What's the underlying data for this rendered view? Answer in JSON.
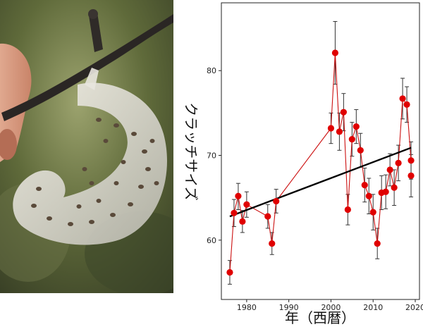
{
  "photo": {
    "subject": "egg-mass"
  },
  "chart_data": {
    "type": "line",
    "xlabel": "年（西暦）",
    "ylabel": "クラッチサイズ",
    "xlim": [
      1974,
      2021
    ],
    "ylim": [
      53,
      88
    ],
    "x_ticks": [
      1980,
      1990,
      2000,
      2010,
      2020
    ],
    "y_ticks": [
      60,
      70,
      80
    ],
    "grid": false,
    "legend": "none",
    "colors": {
      "series": "#cc1111",
      "marker": "#e00000",
      "trend": "#000000",
      "errorbar": "#333333"
    },
    "series": [
      {
        "x": [
          1976,
          1977,
          1978,
          1979,
          1980,
          1985,
          1986,
          1987,
          2000,
          2001,
          2002,
          2003,
          2004,
          2005,
          2006,
          2007,
          2008,
          2009,
          2010,
          2011,
          2012,
          2013,
          2014,
          2015,
          2016,
          2017,
          2018,
          2019
        ],
        "y": [
          56.2,
          63.2,
          65.2,
          62.2,
          64.2,
          62.8,
          59.6,
          64.6,
          73.2,
          82.1,
          72.8,
          75.1,
          63.6,
          71.9,
          73.4,
          70.6,
          66.5,
          65.2,
          63.3,
          59.6,
          65.6,
          65.7,
          68.3,
          66.2,
          69.1,
          76.7,
          76.0,
          69.4
        ],
        "y_low": [
          54.8,
          61.6,
          63.6,
          60.9,
          62.7,
          61.4,
          58.3,
          63.2,
          71.4,
          78.4,
          70.6,
          72.9,
          61.8,
          69.9,
          71.4,
          68.6,
          64.5,
          63.1,
          61.2,
          57.8,
          63.6,
          63.7,
          66.4,
          64.1,
          67.0,
          74.3,
          73.9,
          67.2
        ],
        "y_high": [
          57.6,
          64.8,
          66.7,
          63.5,
          65.7,
          64.2,
          60.9,
          66.0,
          75.0,
          85.8,
          75.0,
          77.3,
          65.4,
          73.9,
          75.4,
          72.6,
          68.5,
          67.3,
          65.4,
          61.4,
          67.6,
          67.7,
          70.2,
          68.3,
          71.2,
          79.1,
          78.1,
          71.6
        ]
      }
    ],
    "extra_points": [
      {
        "x": 2019,
        "y": 67.6,
        "y_low": 65.1,
        "y_high": 70.1
      }
    ],
    "trendline": {
      "x": [
        1976,
        2019
      ],
      "y": [
        62.8,
        70.9
      ]
    }
  }
}
